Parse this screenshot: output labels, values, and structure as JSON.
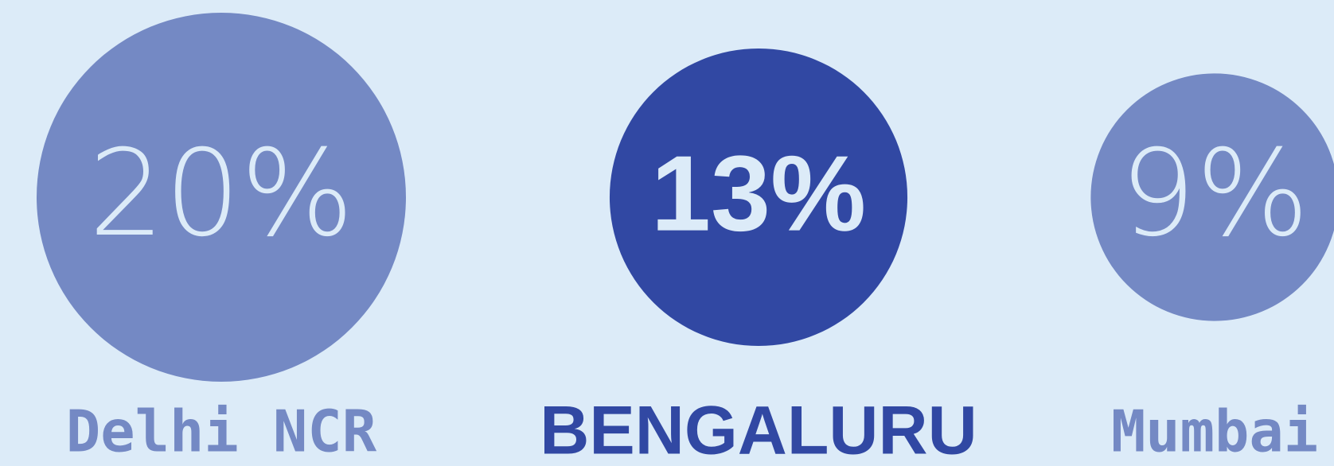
{
  "chart_data": {
    "type": "bubble",
    "categories": [
      "Delhi NCR",
      "BENGALURU",
      "Mumbai"
    ],
    "values": [
      20,
      13,
      9
    ],
    "value_labels": [
      "20%",
      "13%",
      "9%"
    ],
    "colors": [
      "#7489c4",
      "#3148a3",
      "#7489c4"
    ]
  }
}
